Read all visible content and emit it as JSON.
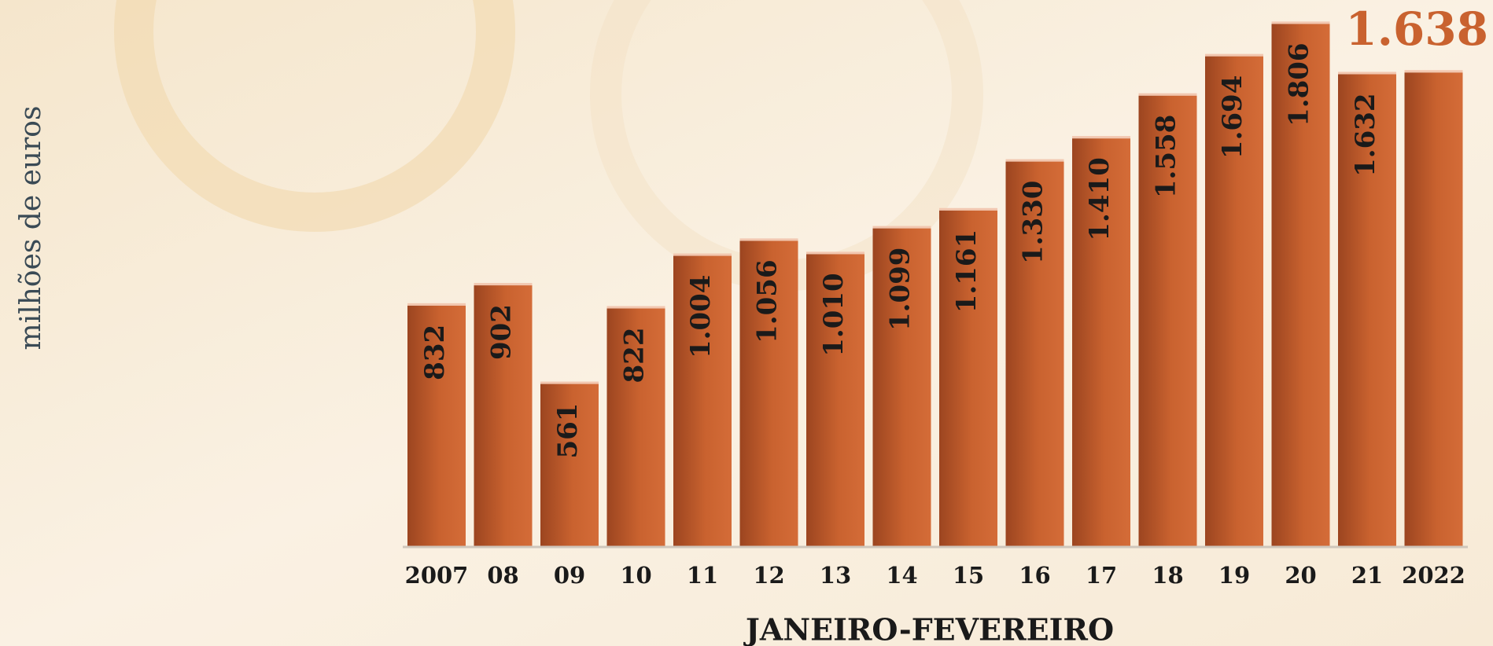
{
  "chart_data": {
    "type": "bar",
    "y_label": "milhões de euros",
    "x_label": "JANEIRO-FEVEREIRO",
    "categories": [
      "2007",
      "08",
      "09",
      "10",
      "11",
      "12",
      "13",
      "14",
      "15",
      "16",
      "17",
      "18",
      "19",
      "20",
      "21",
      "2022"
    ],
    "values": [
      832,
      902,
      561,
      822,
      1004,
      1056,
      1010,
      1099,
      1161,
      1330,
      1410,
      1558,
      1694,
      1806,
      1632,
      1638
    ],
    "value_labels": [
      "832",
      "902",
      "561",
      "822",
      "1.004",
      "1.056",
      "1.010",
      "1.099",
      "1.161",
      "1.330",
      "1.410",
      "1.558",
      "1.694",
      "1.806",
      "1.632",
      "1.638"
    ],
    "color": "#c9622f"
  }
}
